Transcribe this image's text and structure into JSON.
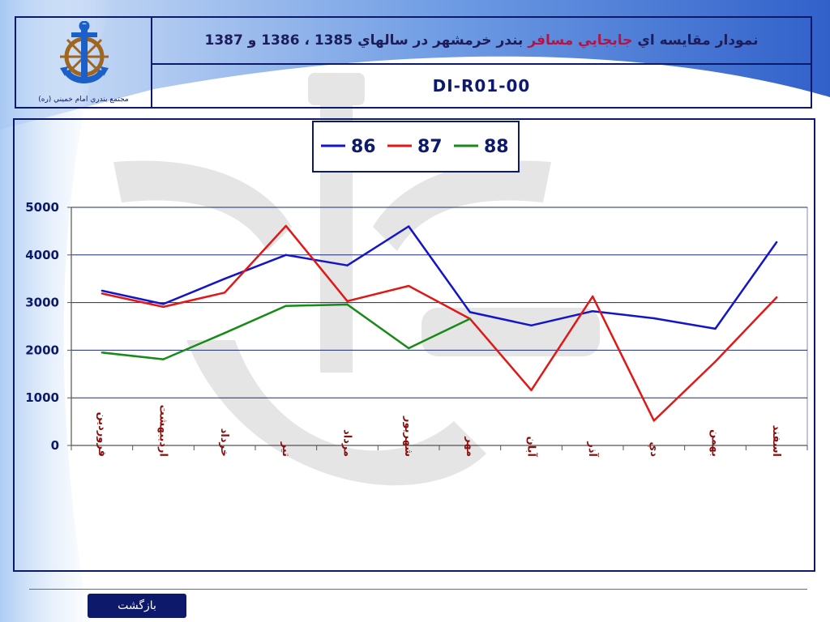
{
  "header": {
    "title_main": "نمودار مقايسه اي",
    "title_highlight": "جابجايي مسافر",
    "title_rest": "بندر خرمشهر در سالهاي 1385 ، 1386 و 1387",
    "code": "DI-R01-00",
    "logo_caption": "مجتمع بندري امام خميني (ره)"
  },
  "footer": {
    "back_label": "بازگشت"
  },
  "colors": {
    "frame": "#0d1a6b",
    "series_86": "#1515c8",
    "series_87": "#e01818",
    "series_88": "#178a17",
    "category_text": "#8a1010"
  },
  "chart_data": {
    "type": "line",
    "categories": [
      "فروردين",
      "ارديبهشت",
      "خرداد",
      "تير",
      "مرداد",
      "شهريور",
      "مهر",
      "آبان",
      "آذر",
      "دي",
      "بهمن",
      "اسفند"
    ],
    "series": [
      {
        "name": "86",
        "color": "#1515c8",
        "values": [
          3250,
          2970,
          3500,
          4000,
          3780,
          4600,
          2800,
          2520,
          2820,
          2670,
          2450,
          4270
        ]
      },
      {
        "name": "87",
        "color": "#e01818",
        "values": [
          3190,
          2910,
          3210,
          4610,
          3030,
          3350,
          2660,
          1160,
          3130,
          520,
          1760,
          3110
        ]
      },
      {
        "name": "88",
        "color": "#178a17",
        "values": [
          1950,
          1810,
          2360,
          2930,
          2960,
          2040,
          2660,
          null,
          null,
          null,
          null,
          null
        ]
      }
    ],
    "yticks": [
      0,
      1000,
      2000,
      3000,
      4000,
      5000
    ],
    "ylim": [
      0,
      5000
    ],
    "grid": true,
    "legend_position": "top-center"
  }
}
